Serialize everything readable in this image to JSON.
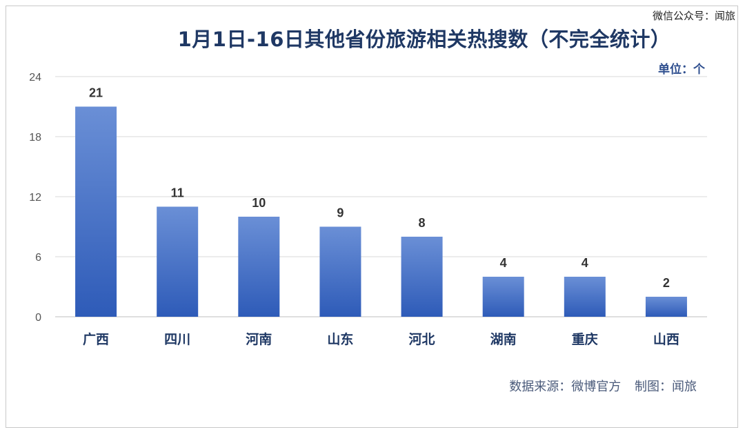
{
  "watermark": "微信公众号：闻旅",
  "unit_label": "单位：个",
  "source_line": "数据来源：微博官方 制图：闻旅",
  "chart_data": {
    "type": "bar",
    "title": "1月1日-16日其他省份旅游相关热搜数（不完全统计）",
    "categories": [
      "广西",
      "四川",
      "河南",
      "山东",
      "河北",
      "湖南",
      "重庆",
      "山西"
    ],
    "values": [
      21,
      11,
      10,
      9,
      8,
      4,
      4,
      2
    ],
    "yticks": [
      0,
      6,
      12,
      18,
      24
    ],
    "ylim": [
      0,
      24
    ],
    "grid": true,
    "bar_color": "#4472c4",
    "xlabel": "",
    "ylabel": ""
  }
}
